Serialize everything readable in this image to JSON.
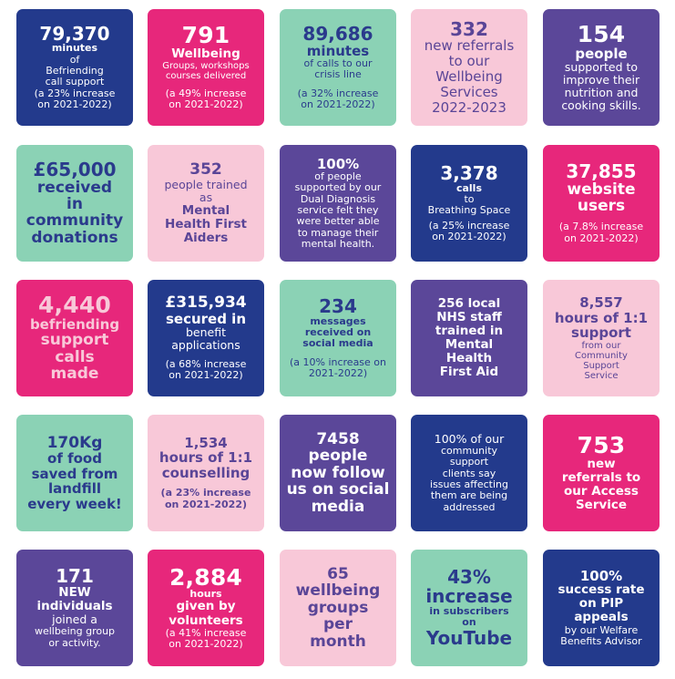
{
  "tiles": [
    {
      "color": "navy",
      "lines": [
        {
          "t": "79,370",
          "s": "big"
        },
        {
          "t": "minutes",
          "s": "xsb"
        },
        {
          "t": "of",
          "s": "sm"
        },
        {
          "t": "Befriending",
          "s": "sm"
        },
        {
          "t": "call support",
          "s": "sm"
        },
        {
          "t": "(a 23% increase",
          "s": "sm"
        },
        {
          "t": "on 2021-2022)",
          "s": "sm"
        }
      ]
    },
    {
      "color": "magenta",
      "lines": [
        {
          "t": "791",
          "s": "huge"
        },
        {
          "t": "Wellbeing",
          "s": "bold"
        },
        {
          "t": "Groups, workshops",
          "s": "xs"
        },
        {
          "t": "courses delivered",
          "s": "xs"
        },
        {
          "t": "",
          "s": "gap"
        },
        {
          "t": "(a 49% increase",
          "s": "sm"
        },
        {
          "t": "on 2021-2022)",
          "s": "sm"
        }
      ]
    },
    {
      "color": "mint",
      "lines": [
        {
          "t": "89,686",
          "s": "big"
        },
        {
          "t": "minutes",
          "s": "med"
        },
        {
          "t": "of calls to our",
          "s": "sm"
        },
        {
          "t": "crisis line",
          "s": "sm"
        },
        {
          "t": "",
          "s": "gap"
        },
        {
          "t": "(a 32% increase",
          "s": "sm"
        },
        {
          "t": "on 2021-2022)",
          "s": "sm"
        }
      ]
    },
    {
      "color": "pink",
      "lines": [
        {
          "t": "332",
          "s": "big"
        },
        {
          "t": "new referrals",
          "s": "lg"
        },
        {
          "t": "to our",
          "s": "lg"
        },
        {
          "t": "Wellbeing",
          "s": "lg"
        },
        {
          "t": "Services",
          "s": "lg"
        },
        {
          "t": "2022-2023",
          "s": "lg"
        }
      ]
    },
    {
      "color": "purple",
      "lines": [
        {
          "t": "154",
          "s": "huge"
        },
        {
          "t": "people",
          "s": "med"
        },
        {
          "t": "supported to",
          "s": "reg"
        },
        {
          "t": "improve their",
          "s": "reg"
        },
        {
          "t": "nutrition and",
          "s": "reg"
        },
        {
          "t": "cooking skills.",
          "s": "reg"
        }
      ]
    },
    {
      "color": "mint",
      "lines": [
        {
          "t": "£65,000",
          "s": "big"
        },
        {
          "t": "received",
          "s": "mid"
        },
        {
          "t": "in",
          "s": "mid"
        },
        {
          "t": "community",
          "s": "mid"
        },
        {
          "t": "donations",
          "s": "mid"
        }
      ]
    },
    {
      "color": "pink",
      "lines": [
        {
          "t": "352",
          "s": "mid"
        },
        {
          "t": "people trained",
          "s": "reg"
        },
        {
          "t": "as",
          "s": "reg"
        },
        {
          "t": "Mental",
          "s": "bold"
        },
        {
          "t": "Health First",
          "s": "bold"
        },
        {
          "t": "Aiders",
          "s": "bold"
        }
      ]
    },
    {
      "color": "purple",
      "lines": [
        {
          "t": "100%",
          "s": "med"
        },
        {
          "t": "of people",
          "s": "sm"
        },
        {
          "t": "supported by our",
          "s": "sm"
        },
        {
          "t": "Dual Diagnosis",
          "s": "sm"
        },
        {
          "t": "service felt they",
          "s": "sm"
        },
        {
          "t": "were better able",
          "s": "sm"
        },
        {
          "t": "to manage their",
          "s": "sm"
        },
        {
          "t": "mental health.",
          "s": "sm"
        }
      ]
    },
    {
      "color": "navy",
      "lines": [
        {
          "t": "3,378",
          "s": "big"
        },
        {
          "t": "calls",
          "s": "xsb"
        },
        {
          "t": "to",
          "s": "sm"
        },
        {
          "t": "Breathing Space",
          "s": "sm"
        },
        {
          "t": "",
          "s": "gap-sm"
        },
        {
          "t": "(a 25% increase",
          "s": "sm"
        },
        {
          "t": "on 2021-2022)",
          "s": "sm"
        }
      ]
    },
    {
      "color": "magenta",
      "lines": [
        {
          "t": "37,855",
          "s": "big"
        },
        {
          "t": "website",
          "s": "mid"
        },
        {
          "t": "users",
          "s": "mid"
        },
        {
          "t": "",
          "s": "gap"
        },
        {
          "t": "(a 7.8% increase",
          "s": "sm"
        },
        {
          "t": "on 2021-2022)",
          "s": "sm"
        }
      ]
    },
    {
      "color": "magenta",
      "lines": [
        {
          "t": "4,440",
          "s": "huge",
          "a": 1
        },
        {
          "t": "befriending",
          "s": "med",
          "a": 1
        },
        {
          "t": "support",
          "s": "mid",
          "a": 1
        },
        {
          "t": "calls",
          "s": "mid",
          "a": 1
        },
        {
          "t": "made",
          "s": "mid",
          "a": 1
        }
      ]
    },
    {
      "color": "navy",
      "lines": [
        {
          "t": "£315,934",
          "s": "mid"
        },
        {
          "t": "secured in",
          "s": "med"
        },
        {
          "t": "benefit",
          "s": "reg"
        },
        {
          "t": "applications",
          "s": "reg"
        },
        {
          "t": "",
          "s": "gap"
        },
        {
          "t": "(a 68% increase",
          "s": "sm"
        },
        {
          "t": "on 2021-2022)",
          "s": "sm"
        }
      ]
    },
    {
      "color": "mint",
      "lines": [
        {
          "t": "234",
          "s": "big"
        },
        {
          "t": "messages",
          "s": "xsb"
        },
        {
          "t": "received on",
          "s": "xsb"
        },
        {
          "t": "social media",
          "s": "xsb"
        },
        {
          "t": "",
          "s": "gap"
        },
        {
          "t": "(a 10% increase on",
          "s": "sm"
        },
        {
          "t": "2021-2022)",
          "s": "sm"
        }
      ]
    },
    {
      "color": "purple",
      "lines": [
        {
          "t": "256 local",
          "s": "bold"
        },
        {
          "t": "NHS staff",
          "s": "bold"
        },
        {
          "t": "trained in",
          "s": "bold"
        },
        {
          "t": "Mental",
          "s": "bold"
        },
        {
          "t": "Health",
          "s": "bold"
        },
        {
          "t": "First Aid",
          "s": "bold"
        }
      ]
    },
    {
      "color": "pink",
      "lines": [
        {
          "t": "8,557",
          "s": "med"
        },
        {
          "t": "hours of 1:1",
          "s": "med"
        },
        {
          "t": "support",
          "s": "med"
        },
        {
          "t": "from our",
          "s": "xs"
        },
        {
          "t": "Community",
          "s": "xs"
        },
        {
          "t": "Support",
          "s": "xs"
        },
        {
          "t": "Service",
          "s": "xs"
        }
      ]
    },
    {
      "color": "mint",
      "lines": [
        {
          "t": "170Kg",
          "s": "mid"
        },
        {
          "t": "of food",
          "s": "med"
        },
        {
          "t": "saved from",
          "s": "med"
        },
        {
          "t": "landfill",
          "s": "med"
        },
        {
          "t": "every week!",
          "s": "med"
        }
      ]
    },
    {
      "color": "pink",
      "lines": [
        {
          "t": "1,534",
          "s": "med"
        },
        {
          "t": "hours of 1:1",
          "s": "med"
        },
        {
          "t": "counselling",
          "s": "med"
        },
        {
          "t": "",
          "s": "gap"
        },
        {
          "t": "(a 23% increase",
          "s": "xsb"
        },
        {
          "t": "on 2021-2022)",
          "s": "xsb"
        }
      ]
    },
    {
      "color": "purple",
      "lines": [
        {
          "t": "7458",
          "s": "mid"
        },
        {
          "t": "people",
          "s": "mid"
        },
        {
          "t": "now follow",
          "s": "mid"
        },
        {
          "t": "us on social",
          "s": "mid"
        },
        {
          "t": "media",
          "s": "mid"
        }
      ]
    },
    {
      "color": "navy",
      "lines": [
        {
          "t": "100% of our",
          "s": "reg"
        },
        {
          "t": "community",
          "s": "sm"
        },
        {
          "t": "support",
          "s": "sm"
        },
        {
          "t": "clients say",
          "s": "sm"
        },
        {
          "t": "issues affecting",
          "s": "sm"
        },
        {
          "t": "them are being",
          "s": "sm"
        },
        {
          "t": "addressed",
          "s": "sm"
        }
      ]
    },
    {
      "color": "magenta",
      "lines": [
        {
          "t": "753",
          "s": "huge"
        },
        {
          "t": "new",
          "s": "bold"
        },
        {
          "t": "referrals to",
          "s": "bold"
        },
        {
          "t": "our Access",
          "s": "bold"
        },
        {
          "t": "Service",
          "s": "bold"
        }
      ]
    },
    {
      "color": "purple",
      "lines": [
        {
          "t": "171",
          "s": "big"
        },
        {
          "t": "NEW",
          "s": "bold"
        },
        {
          "t": "individuals",
          "s": "bold"
        },
        {
          "t": "joined a",
          "s": "reg"
        },
        {
          "t": "wellbeing group",
          "s": "sm"
        },
        {
          "t": "or activity.",
          "s": "sm"
        }
      ]
    },
    {
      "color": "magenta",
      "lines": [
        {
          "t": "2,884",
          "s": "huge"
        },
        {
          "t": "hours",
          "s": "xsb"
        },
        {
          "t": "given by",
          "s": "bold"
        },
        {
          "t": "volunteers",
          "s": "bold"
        },
        {
          "t": "(a 41% increase",
          "s": "sm"
        },
        {
          "t": "on 2021-2022)",
          "s": "sm"
        }
      ]
    },
    {
      "color": "pink",
      "lines": [
        {
          "t": "65",
          "s": "mid"
        },
        {
          "t": "wellbeing",
          "s": "mid"
        },
        {
          "t": "groups",
          "s": "mid"
        },
        {
          "t": "per",
          "s": "mid"
        },
        {
          "t": "month",
          "s": "mid"
        }
      ]
    },
    {
      "color": "mint",
      "lines": [
        {
          "t": "43%",
          "s": "big"
        },
        {
          "t": "increase",
          "s": "big"
        },
        {
          "t": "in subscribers",
          "s": "xsb"
        },
        {
          "t": "on",
          "s": "xsb"
        },
        {
          "t": "YouTube",
          "s": "big"
        }
      ]
    },
    {
      "color": "navy",
      "lines": [
        {
          "t": "100%",
          "s": "med"
        },
        {
          "t": "success rate",
          "s": "bold"
        },
        {
          "t": "on PIP",
          "s": "bold"
        },
        {
          "t": "appeals",
          "s": "bold"
        },
        {
          "t": "by our Welfare",
          "s": "sm"
        },
        {
          "t": "Benefits Advisor",
          "s": "sm"
        }
      ]
    }
  ]
}
